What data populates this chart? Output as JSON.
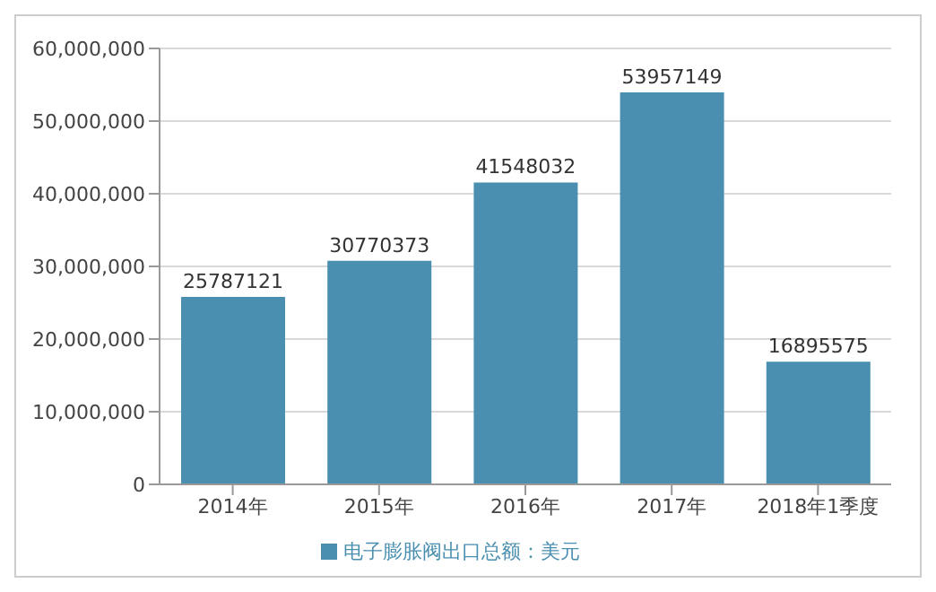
{
  "chart_data": {
    "type": "bar",
    "categories": [
      "2014年",
      "2015年",
      "2016年",
      "2017年",
      "2018年1季度"
    ],
    "series": [
      {
        "name": "电子膨胀阀出口总额：美元",
        "color": "#4a8fb0",
        "values": [
          25787121,
          30770373,
          41548032,
          53957149,
          16895575
        ]
      }
    ],
    "ylim": [
      0,
      60000000
    ],
    "yticks": [
      {
        "value": 0,
        "label": "0"
      },
      {
        "value": 10000000,
        "label": "10,000,000"
      },
      {
        "value": 20000000,
        "label": "20,000,000"
      },
      {
        "value": 30000000,
        "label": "30,000,000"
      },
      {
        "value": 40000000,
        "label": "40,000,000"
      },
      {
        "value": 50000000,
        "label": "50,000,000"
      },
      {
        "value": 60000000,
        "label": "60,000,000"
      }
    ],
    "grid": "y",
    "legend": "bottom",
    "data_labels": true
  }
}
